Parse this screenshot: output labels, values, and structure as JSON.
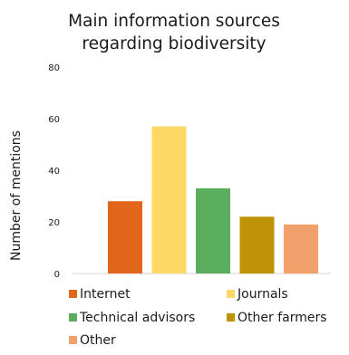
{
  "chart_data": {
    "type": "bar",
    "title_lines": [
      "Main information sources",
      "regarding biodiversity"
    ],
    "ylabel": "Number of mentions",
    "xlabel": "",
    "ylim": [
      0,
      80
    ],
    "yticks": [
      0,
      20,
      40,
      60,
      80
    ],
    "grid": false,
    "legend_position": "bottom",
    "categories": [
      "Internet",
      "Journals",
      "Technical advisors",
      "Other farmers",
      "Other"
    ],
    "values": [
      28,
      57,
      33,
      22,
      19
    ],
    "colors": [
      "#e2661a",
      "#fdd866",
      "#5aae5e",
      "#c09206",
      "#f1a06a"
    ]
  }
}
